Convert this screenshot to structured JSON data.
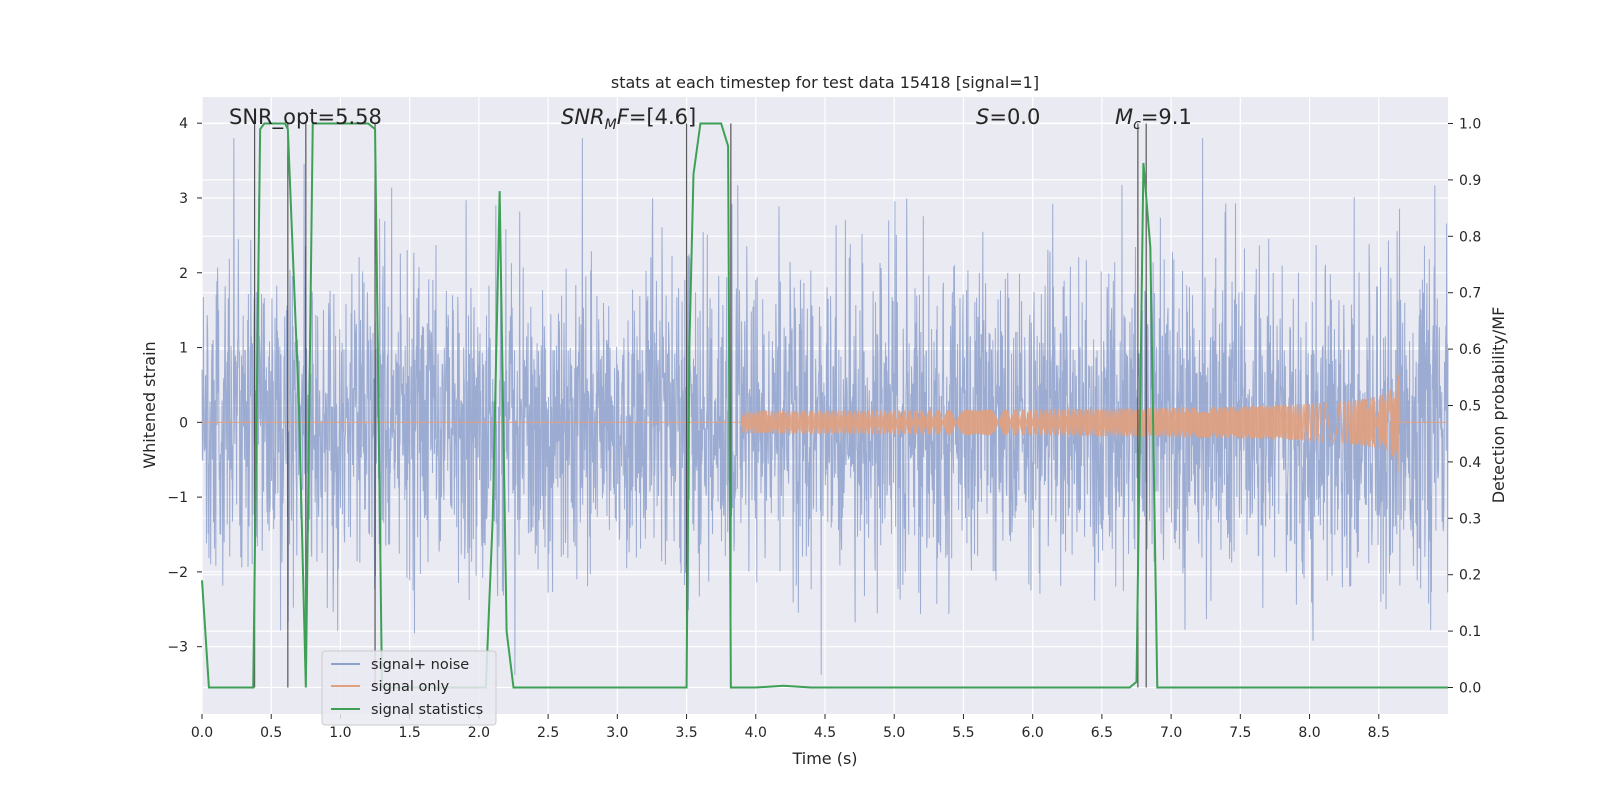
{
  "chart_data": {
    "type": "line",
    "title": "stats at each timestep for test data 15418 [signal=1]",
    "xlabel": "Time (s)",
    "ylabel_left": "Whitened strain",
    "ylabel_right": "Detection probability/MF",
    "xlim": [
      0.0,
      9.0
    ],
    "ylim_left": [
      -3.9,
      4.35
    ],
    "ylim_right": [
      -0.047,
      1.047
    ],
    "x_ticks": [
      "0.0",
      "0.5",
      "1.0",
      "1.5",
      "2.0",
      "2.5",
      "3.0",
      "3.5",
      "4.0",
      "4.5",
      "5.0",
      "5.5",
      "6.0",
      "6.5",
      "7.0",
      "7.5",
      "8.0",
      "8.5"
    ],
    "y_ticks_left": [
      "−3",
      "−2",
      "−1",
      "0",
      "1",
      "2",
      "3",
      "4"
    ],
    "y_ticks_right": [
      "0.0",
      "0.1",
      "0.2",
      "0.3",
      "0.4",
      "0.5",
      "0.6",
      "0.7",
      "0.8",
      "0.9",
      "1.0"
    ],
    "grid": true,
    "legend_position": "lower-left",
    "annotations": {
      "snr_opt": "SNR_opt=5.58",
      "snr_mf": "SNR_MF=[4.6]",
      "s": "S=0.0",
      "mc": "M_c=9.1"
    },
    "series": [
      {
        "name": "signal+ noise",
        "color": "#8da0cb",
        "description_values": {
          "noise_std": 1.0,
          "peak_abs": 3.8
        }
      },
      {
        "name": "signal only",
        "color": "#e1a07e",
        "chirp_start_time": 3.9,
        "merger_time": 8.65,
        "peak_amplitude": 0.85
      },
      {
        "name": "signal statistics",
        "color": "#3ea055",
        "axis": "right",
        "x": [
          0.0,
          0.05,
          0.1,
          0.2,
          0.3,
          0.37,
          0.42,
          0.45,
          0.5,
          0.6,
          0.62,
          0.7,
          0.75,
          0.8,
          0.85,
          0.9,
          1.0,
          1.1,
          1.15,
          1.2,
          1.25,
          1.3,
          1.4,
          1.5,
          1.6,
          1.7,
          1.8,
          1.9,
          2.0,
          2.05,
          2.1,
          2.15,
          2.2,
          2.25,
          2.3,
          2.35,
          2.4,
          2.5,
          2.6,
          2.7,
          2.8,
          2.9,
          3.0,
          3.1,
          3.2,
          3.3,
          3.4,
          3.5,
          3.52,
          3.55,
          3.6,
          3.65,
          3.75,
          3.8,
          3.82,
          3.85,
          3.9,
          4.0,
          4.2,
          4.4,
          4.6,
          4.8,
          5.0,
          5.2,
          5.4,
          5.6,
          5.8,
          6.0,
          6.2,
          6.4,
          6.6,
          6.7,
          6.75,
          6.8,
          6.85,
          6.9,
          6.95,
          7.0,
          7.2,
          7.5,
          8.0,
          8.5,
          9.0
        ],
        "y": [
          0.19,
          0.0,
          0.0,
          0.0,
          0.0,
          0.0,
          0.99,
          1.0,
          1.0,
          1.0,
          0.99,
          0.5,
          0.0,
          1.0,
          1.0,
          1.0,
          1.0,
          1.0,
          1.0,
          1.0,
          0.99,
          0.0,
          0.0,
          0.0,
          0.0,
          0.0,
          0.0,
          0.0,
          0.0,
          0.0,
          0.3,
          0.88,
          0.1,
          0.0,
          0.0,
          0.0,
          0.0,
          0.0,
          0.0,
          0.0,
          0.0,
          0.0,
          0.0,
          0.0,
          0.0,
          0.0,
          0.0,
          0.0,
          0.6,
          0.91,
          1.0,
          1.0,
          1.0,
          0.96,
          0.0,
          0.0,
          0.0,
          0.0,
          0.003,
          0.0,
          0.0,
          0.0,
          0.0,
          0.0,
          0.0,
          0.0,
          0.0,
          0.0,
          0.0,
          0.0,
          0.0,
          0.0,
          0.01,
          0.93,
          0.78,
          0.0,
          0.0,
          0.0,
          0.0,
          0.0,
          0.0,
          0.0,
          0.0
        ]
      }
    ],
    "vertical_markers": [
      0.38,
      0.62,
      0.75,
      1.25,
      3.5,
      3.82,
      6.76,
      6.82
    ]
  },
  "legend": {
    "item1": "signal+ noise",
    "item2": "signal only",
    "item3": "signal statistics"
  }
}
